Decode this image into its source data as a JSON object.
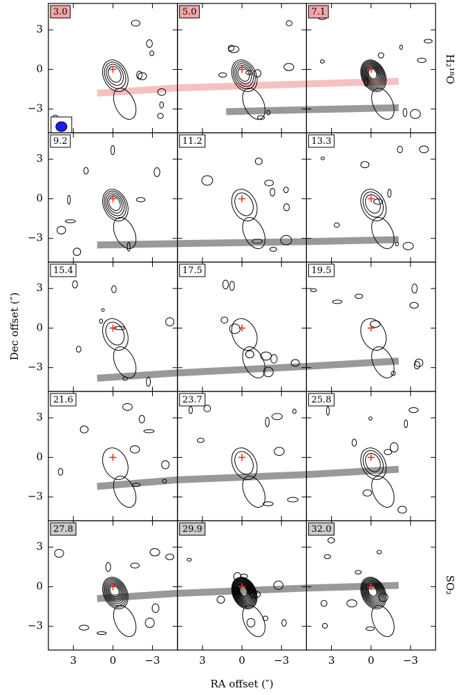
{
  "chart_data": {
    "type": "channel_map",
    "xlabel": "RA offset (″)",
    "ylabel": "Dec offset (″)",
    "row_labels": [
      "H₂¹⁸O",
      "SO₂"
    ],
    "xlim": [
      4.9,
      -4.9
    ],
    "ylim": [
      -4.8,
      5.0
    ],
    "xticks": [
      3,
      0,
      {
        "value": -3,
        "label": "−3"
      }
    ],
    "yticks": [
      3,
      0,
      {
        "value": -3,
        "label": "−3"
      }
    ],
    "source_position": [
      0,
      0
    ],
    "panels": [
      {
        "label": "3.0",
        "label_color": "#f4a6a6",
        "bands": [
          {
            "color": "#f7c0c0",
            "line": [
              1.2,
              -1.8,
              -4.9,
              -1.4
            ]
          }
        ]
      },
      {
        "label": "5.0",
        "label_color": "#f4a6a6",
        "bands": [
          {
            "color": "#f7c0c0",
            "line": [
              4.9,
              -1.4,
              -4.9,
              -1.1
            ]
          },
          {
            "color": "#999999",
            "line": [
              1.2,
              -3.2,
              -4.9,
              -3.05
            ]
          }
        ]
      },
      {
        "label": "7.1",
        "label_color": "#f4a6a6",
        "bands": [
          {
            "color": "#f7c0c0",
            "line": [
              4.9,
              -1.1,
              -2.1,
              -0.9
            ]
          },
          {
            "color": "#999999",
            "line": [
              4.9,
              -3.05,
              -2.1,
              -2.9
            ]
          }
        ]
      },
      {
        "label": "9.2",
        "label_color": "#ffffff",
        "bands": [
          {
            "color": "#999999",
            "line": [
              1.2,
              -3.5,
              -4.9,
              -3.4
            ]
          }
        ]
      },
      {
        "label": "11.2",
        "label_color": "#ffffff",
        "bands": [
          {
            "color": "#999999",
            "line": [
              4.9,
              -3.4,
              -4.9,
              -3.25
            ]
          }
        ]
      },
      {
        "label": "13.3",
        "label_color": "#ffffff",
        "bands": [
          {
            "color": "#999999",
            "line": [
              4.9,
              -3.25,
              -2.1,
              -3.1
            ]
          }
        ]
      },
      {
        "label": "15.4",
        "label_color": "#ffffff",
        "bands": [
          {
            "color": "#999999",
            "line": [
              1.2,
              -3.8,
              -4.9,
              -3.4
            ]
          }
        ]
      },
      {
        "label": "17.5",
        "label_color": "#ffffff",
        "bands": [
          {
            "color": "#999999",
            "line": [
              4.9,
              -3.4,
              -4.9,
              -2.9
            ]
          }
        ]
      },
      {
        "label": "19.5",
        "label_color": "#ffffff",
        "bands": [
          {
            "color": "#999999",
            "line": [
              4.9,
              -2.9,
              -2.1,
              -2.5
            ]
          }
        ]
      },
      {
        "label": "21.6",
        "label_color": "#ffffff",
        "bands": [
          {
            "color": "#999999",
            "line": [
              1.2,
              -2.2,
              -4.9,
              -1.7
            ]
          }
        ]
      },
      {
        "label": "23.7",
        "label_color": "#ffffff",
        "bands": [
          {
            "color": "#999999",
            "line": [
              4.9,
              -1.7,
              -4.9,
              -1.3
            ]
          }
        ]
      },
      {
        "label": "25.8",
        "label_color": "#ffffff",
        "bands": [
          {
            "color": "#999999",
            "line": [
              4.9,
              -1.3,
              -2.1,
              -0.9
            ]
          }
        ]
      },
      {
        "label": "27.8",
        "label_color": "#cccccc",
        "bands": [
          {
            "color": "#999999",
            "line": [
              1.2,
              -0.9,
              -4.9,
              -0.5
            ]
          }
        ]
      },
      {
        "label": "29.9",
        "label_color": "#cccccc",
        "bands": [
          {
            "color": "#999999",
            "line": [
              4.9,
              -0.5,
              -4.9,
              -0.1
            ]
          }
        ]
      },
      {
        "label": "32.0",
        "label_color": "#cccccc",
        "bands": [
          {
            "color": "#999999",
            "line": [
              4.9,
              -0.1,
              -2.1,
              0.1
            ]
          }
        ]
      }
    ]
  }
}
